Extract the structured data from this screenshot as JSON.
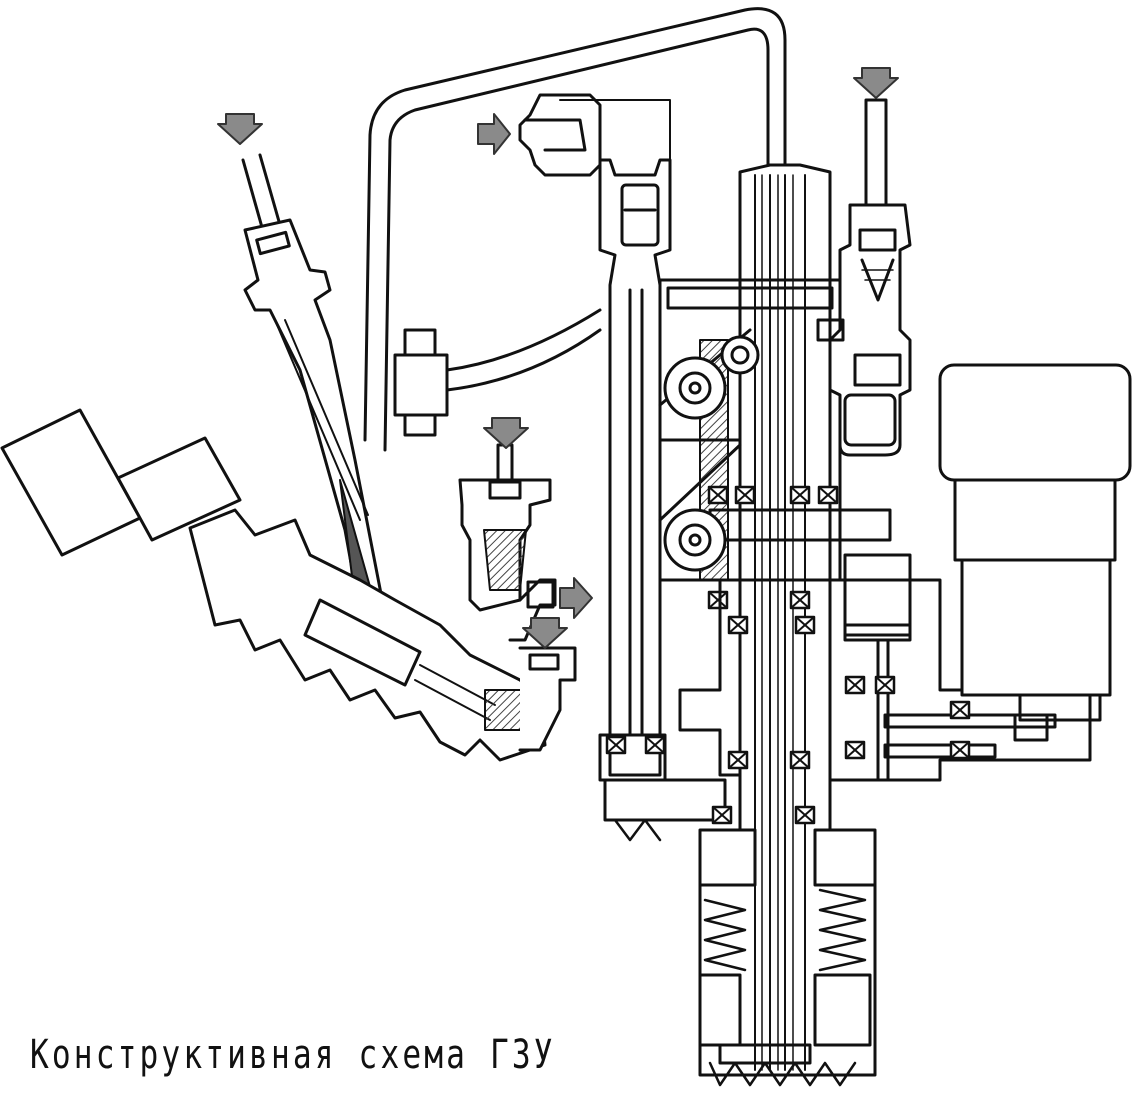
{
  "caption": "Конструктивная схема ГЗУ",
  "colors": {
    "ink": "#111111",
    "arrow_fill": "#8a8a8a",
    "hatch": "#444444",
    "paper": "#ffffff"
  },
  "icons": [
    "flow-arrow-icon",
    "bearing-icon",
    "spring-icon",
    "pulley-icon"
  ]
}
